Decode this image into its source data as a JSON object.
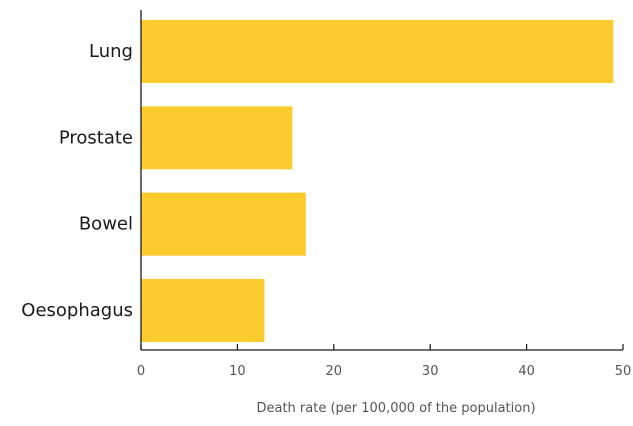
{
  "chart_data": {
    "type": "bar",
    "orientation": "horizontal",
    "categories": [
      "Lung",
      "Prostate",
      "Bowel",
      "Oesophagus"
    ],
    "values": [
      49,
      15.7,
      17.1,
      12.8
    ],
    "xlabel": "Death rate (per 100,000 of the population)",
    "ylabel": "",
    "title": "",
    "xlim": [
      0,
      50
    ],
    "xticks": [
      "0",
      "10",
      "20",
      "30",
      "40",
      "50"
    ],
    "grid": false,
    "bar_color": "#fccb2e",
    "axis_color": "#1a1a1a"
  }
}
